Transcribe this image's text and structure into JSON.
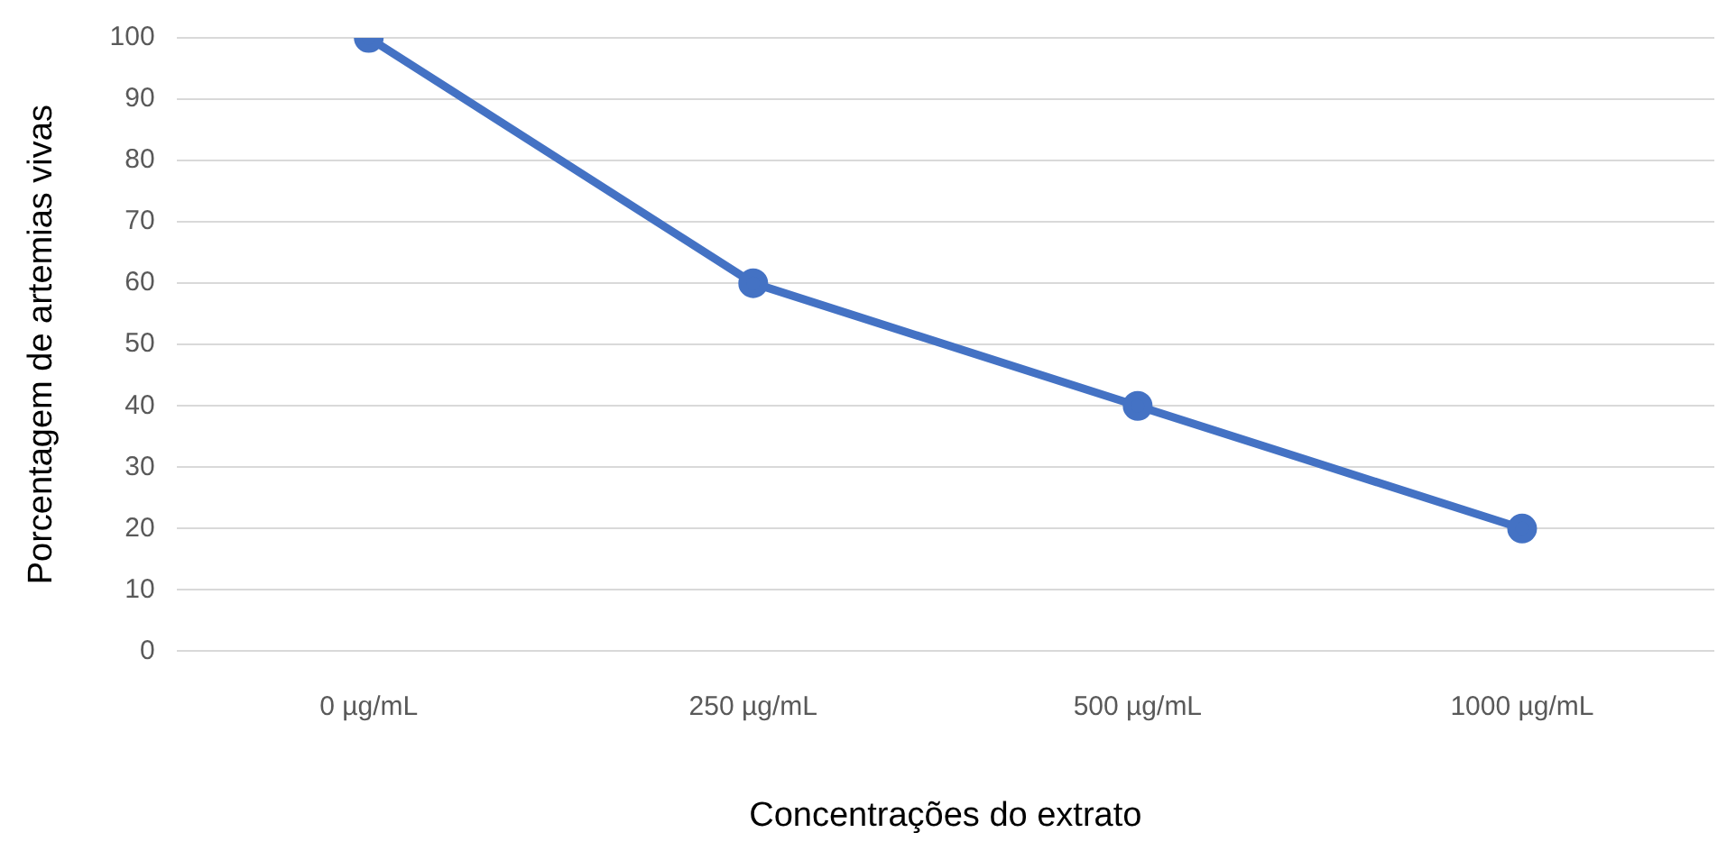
{
  "chart_data": {
    "type": "line",
    "xlabel": "Concentrações do extrato",
    "ylabel": "Porcentagem de artemias vivas",
    "categories": [
      "0 µg/mL",
      "250 µg/mL",
      "500 µg/mL",
      "1000 µg/mL"
    ],
    "series": [
      {
        "color": "#4472c4",
        "values": [
          100,
          60,
          40,
          20
        ]
      }
    ],
    "ylim": [
      0,
      100
    ],
    "yticks": [
      0,
      10,
      20,
      30,
      40,
      50,
      60,
      70,
      80,
      90,
      100
    ],
    "grid": "y",
    "legend": false,
    "marker": "circle",
    "line_style": "solid"
  }
}
